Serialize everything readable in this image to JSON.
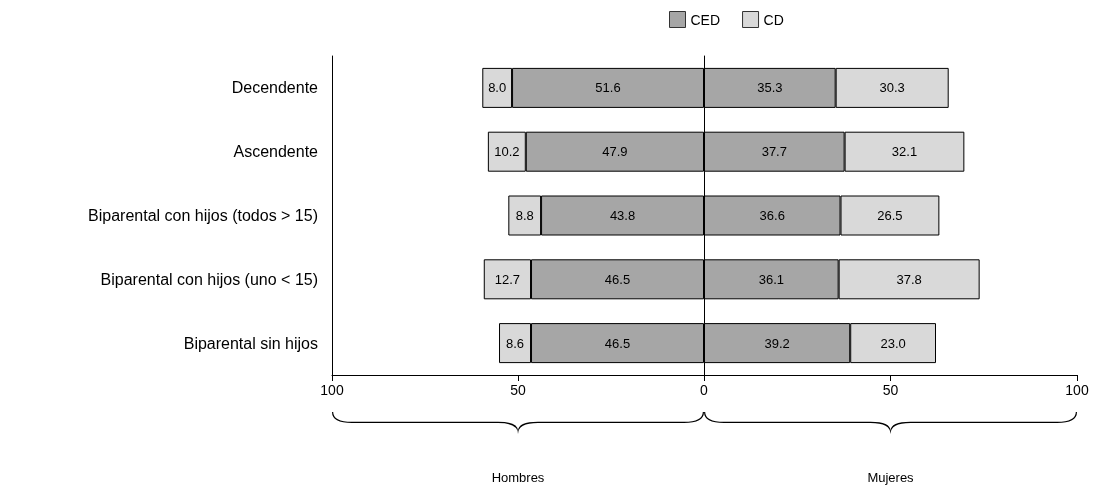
{
  "chart_data": [
    {
      "type": "bar",
      "orientation": "horizontal",
      "stacked": true,
      "categories": [
        "Decendente",
        "Ascendente",
        "Biparental con hijos (todos > 15)",
        "Biparental con hijos (uno < 15)",
        "Biparental sin hijos"
      ],
      "series": [
        {
          "color": "#a6a6a6",
          "values": [
            51.6,
            47.9,
            43.8,
            46.5,
            46.5
          ],
          "value_labels": [
            "51.6",
            "47.9",
            "43.8",
            "46.5",
            "46.5"
          ]
        },
        {
          "color": "#d9d9d9",
          "values": [
            8.0,
            10.2,
            8.8,
            12.7,
            8.6
          ],
          "value_labels": [
            "8.0",
            "10.2",
            "8.8",
            "12.7",
            "8.6"
          ]
        }
      ],
      "xlim": [
        100,
        0
      ],
      "xticks": [
        100,
        50
      ],
      "xlabel": "Hombres",
      "grid": false
    },
    {
      "type": "bar",
      "orientation": "horizontal",
      "stacked": true,
      "categories": [
        null,
        null,
        null,
        null,
        null
      ],
      "series": [
        {
          "name": "CED",
          "color": "#a6a6a6",
          "values": [
            35.3,
            37.7,
            36.6,
            36.1,
            39.2
          ],
          "value_labels": [
            "35.3",
            "37.7",
            "36.6",
            "36.1",
            "39.2"
          ]
        },
        {
          "name": "CD",
          "color": "#d9d9d9",
          "values": [
            30.3,
            32.1,
            26.5,
            37.8,
            23.0
          ],
          "value_labels": [
            "30.3",
            "32.1",
            "26.5",
            "37.8",
            "23.0"
          ]
        }
      ],
      "xlim": [
        0,
        100
      ],
      "xticks": [
        0,
        50,
        100
      ],
      "xlabel": "Mujeres",
      "tick_labels": "x",
      "grid": false,
      "legend": "top left"
    }
  ]
}
